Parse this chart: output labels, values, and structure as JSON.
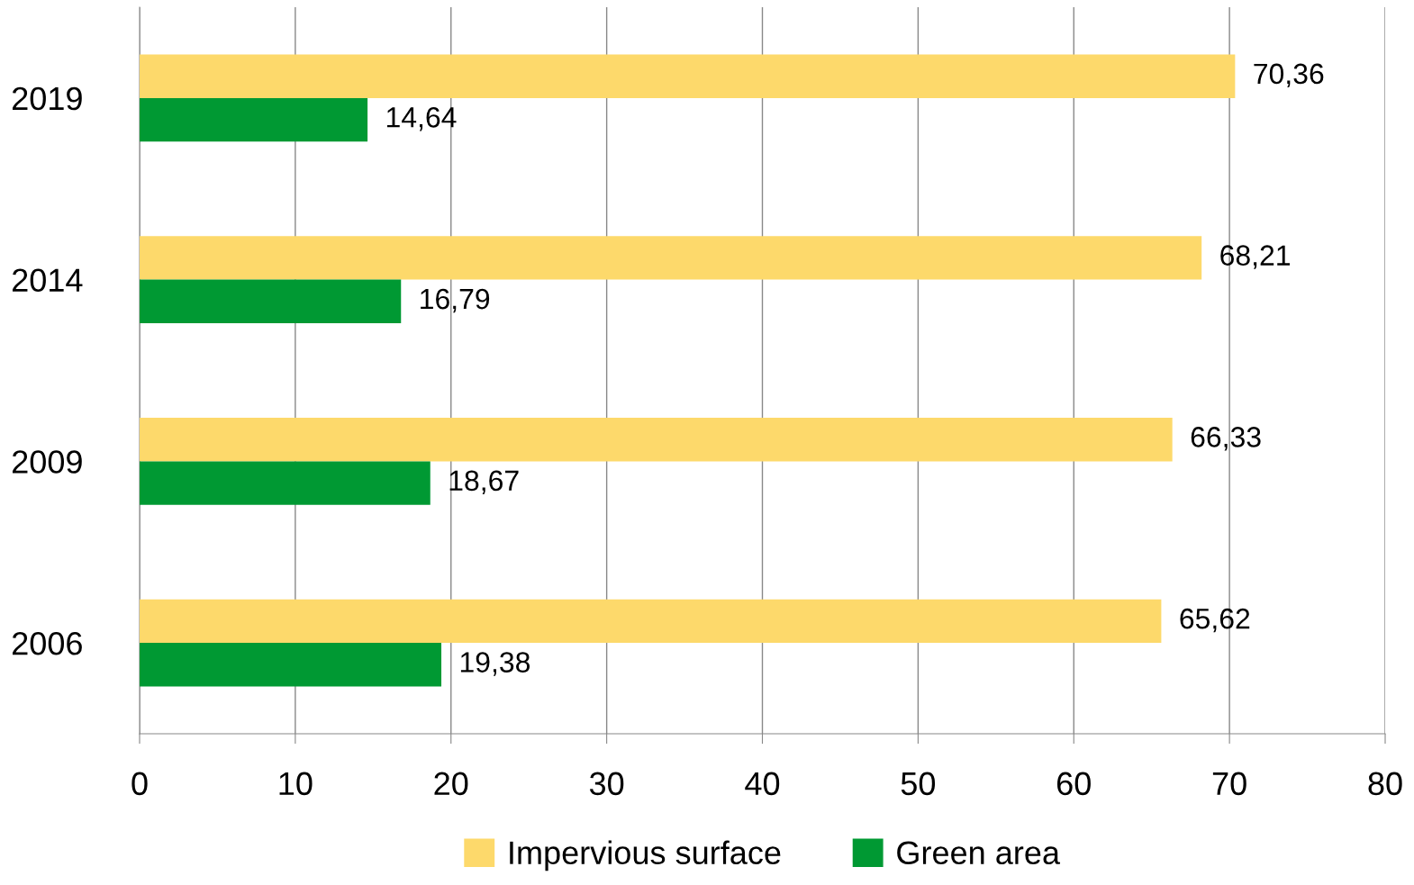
{
  "chart_data": {
    "type": "bar",
    "orientation": "horizontal",
    "categories": [
      "2019",
      "2014",
      "2009",
      "2006"
    ],
    "series": [
      {
        "name": "Impervious surface",
        "color": "#fdd96b",
        "values": [
          70.36,
          68.21,
          66.33,
          65.62
        ],
        "value_labels": [
          "70,36",
          "68,21",
          "66,33",
          "65,62"
        ]
      },
      {
        "name": "Green area",
        "color": "#009933",
        "values": [
          14.64,
          16.79,
          18.67,
          19.38
        ],
        "value_labels": [
          "14,64",
          "16,79",
          "18,67",
          "19,38"
        ]
      }
    ],
    "xlim": [
      0,
      80
    ],
    "xticks": [
      0,
      10,
      20,
      30,
      40,
      50,
      60,
      70,
      80
    ],
    "grid": "x",
    "legend": "bottom"
  }
}
